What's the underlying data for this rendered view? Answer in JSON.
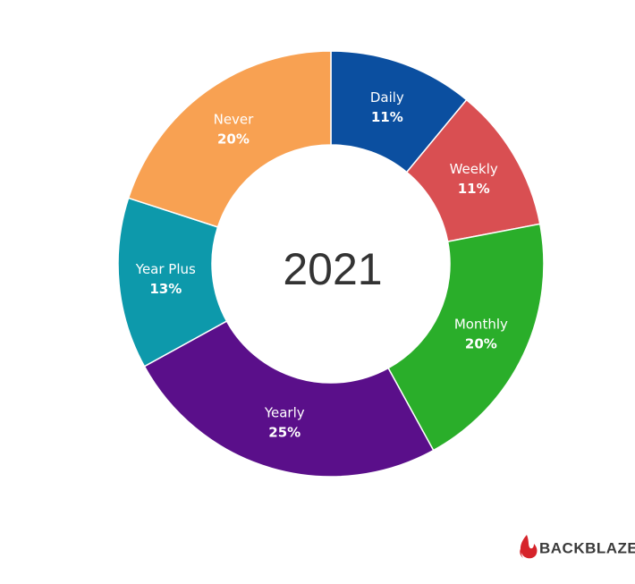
{
  "chart_data": {
    "type": "pie",
    "title": "2021",
    "categories": [
      "Daily",
      "Weekly",
      "Monthly",
      "Yearly",
      "Year Plus",
      "Never"
    ],
    "values": [
      11,
      11,
      20,
      25,
      13,
      20
    ],
    "value_labels": [
      "11%",
      "11%",
      "20%",
      "25%",
      "13%",
      "20%"
    ],
    "colors": [
      "#0b4fa0",
      "#d94f52",
      "#2aae2a",
      "#5a0f8a",
      "#0d99ab",
      "#f8a152"
    ]
  },
  "logo": "BACKBLAZE"
}
